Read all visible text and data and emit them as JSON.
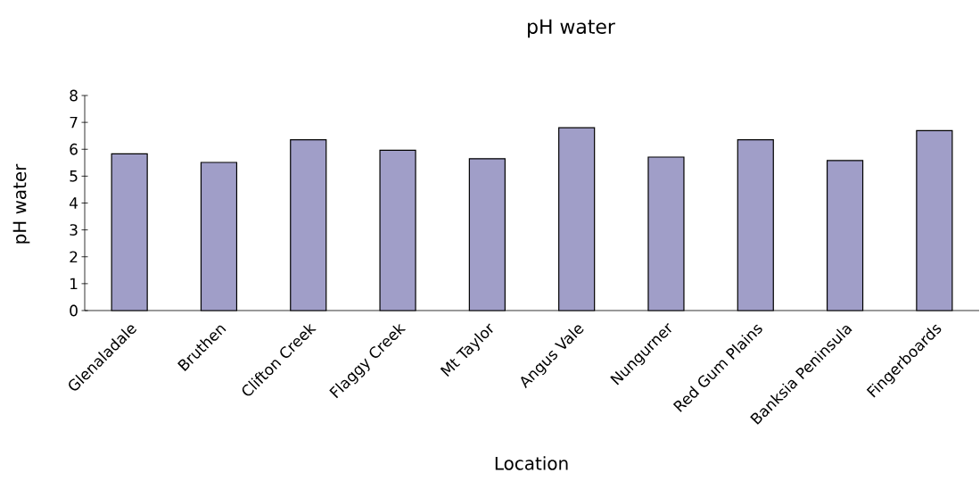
{
  "chart_data": {
    "type": "bar",
    "title": "pH water",
    "xlabel": "Location",
    "ylabel": "pH water",
    "categories": [
      "Glenaladale",
      "Bruthen",
      "Clifton Creek",
      "Flaggy Creek",
      "Mt Taylor",
      "Angus Vale",
      "Nungurner",
      "Red Gum Plains",
      "Banksia Peninsula",
      "Fingerboards"
    ],
    "values": [
      5.83,
      5.51,
      6.35,
      5.96,
      5.65,
      6.8,
      5.71,
      6.35,
      5.58,
      6.69
    ],
    "color": "#a09ec8",
    "ylim": [
      0,
      8
    ],
    "yticks": [
      0,
      1,
      2,
      3,
      4,
      5,
      6,
      7,
      8
    ]
  }
}
